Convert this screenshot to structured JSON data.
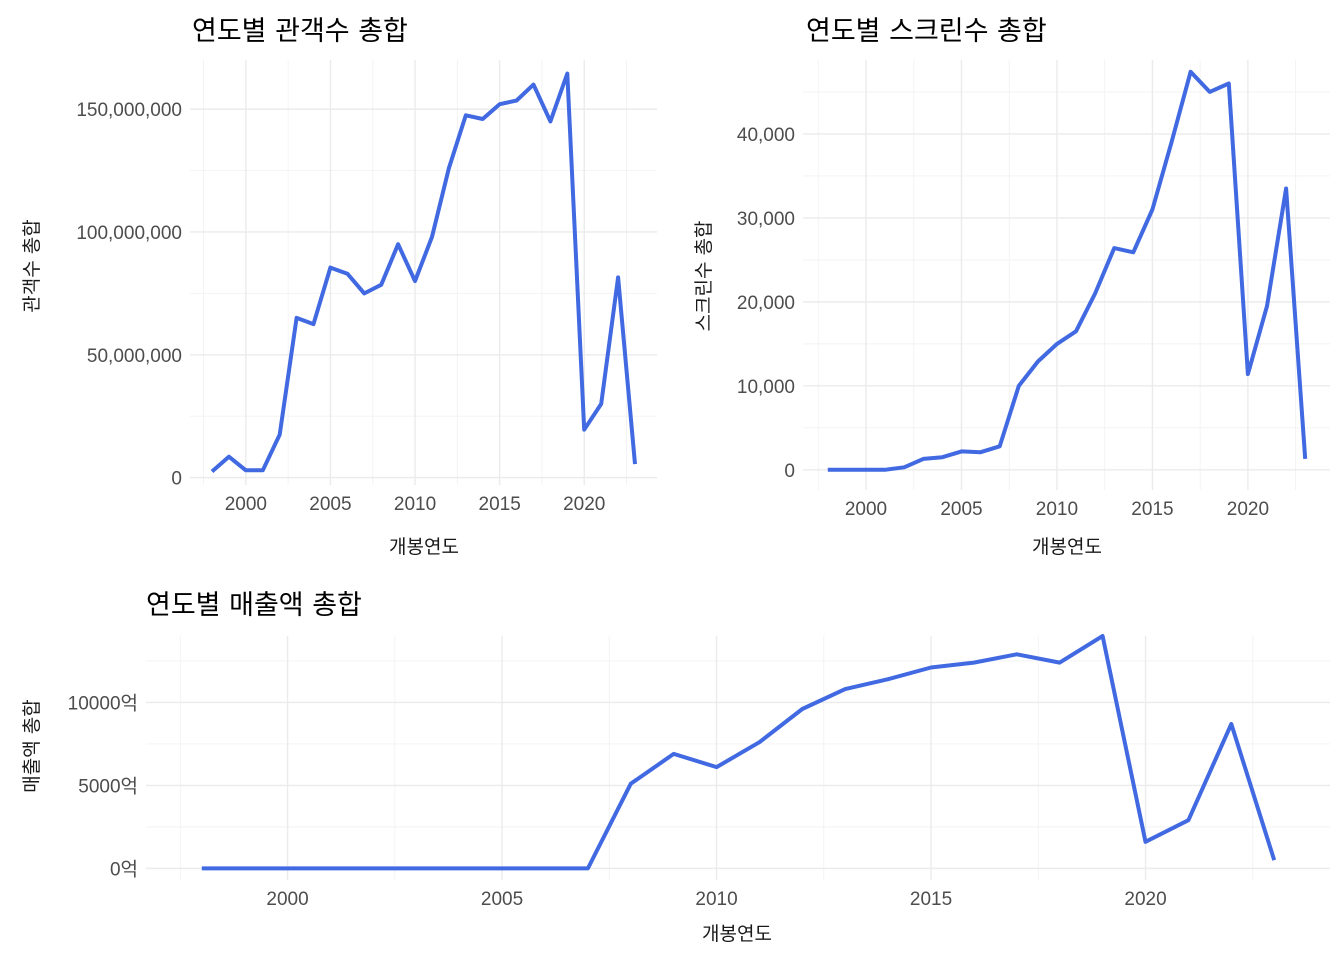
{
  "chart_data": [
    {
      "type": "line",
      "title": "연도별 관객수 총합",
      "xlabel": "개봉연도",
      "ylabel": "관객수 총합",
      "xlim": [
        1996.7,
        2024.3
      ],
      "ylim": [
        -3000000,
        170000000
      ],
      "x_ticks": [
        2000,
        2005,
        2010,
        2015,
        2020
      ],
      "x_tick_labels": [
        "2000",
        "2005",
        "2010",
        "2015",
        "2020"
      ],
      "y_ticks": [
        0,
        50000000,
        100000000,
        150000000
      ],
      "y_tick_labels": [
        "0",
        "50,000,000",
        "100,000,000",
        "150,000,000"
      ],
      "grid": true,
      "legend": "none",
      "color": "#4169e1",
      "x": [
        1998,
        1999,
        2000,
        2001,
        2002,
        2003,
        2004,
        2005,
        2006,
        2007,
        2008,
        2009,
        2010,
        2011,
        2012,
        2013,
        2014,
        2015,
        2016,
        2017,
        2018,
        2019,
        2020,
        2021,
        2022,
        2023
      ],
      "y": [
        2500000,
        8500000,
        3000000,
        3000000,
        17500000,
        65000000,
        62500000,
        85500000,
        83000000,
        75000000,
        78500000,
        95000000,
        80000000,
        98000000,
        126000000,
        147500000,
        146000000,
        152000000,
        153500000,
        160000000,
        145000000,
        164500000,
        19500000,
        30000000,
        81500000,
        5500000
      ]
    },
    {
      "type": "line",
      "title": "연도별 스크린수 총합",
      "xlabel": "개봉연도",
      "ylabel": "스크린수 총합",
      "xlim": [
        1996.7,
        2024.3
      ],
      "ylim": [
        -2400,
        48800
      ],
      "x_ticks": [
        2000,
        2005,
        2010,
        2015,
        2020
      ],
      "x_tick_labels": [
        "2000",
        "2005",
        "2010",
        "2015",
        "2020"
      ],
      "y_ticks": [
        0,
        10000,
        20000,
        30000,
        40000
      ],
      "y_tick_labels": [
        "0",
        "10,000",
        "20,000",
        "30,000",
        "40,000"
      ],
      "grid": true,
      "legend": "none",
      "color": "#4169e1",
      "x": [
        1998,
        1999,
        2000,
        2001,
        2002,
        2003,
        2004,
        2005,
        2006,
        2007,
        2008,
        2009,
        2010,
        2011,
        2012,
        2013,
        2014,
        2015,
        2016,
        2017,
        2018,
        2019,
        2020,
        2021,
        2022,
        2023
      ],
      "y": [
        0,
        0,
        0,
        0,
        300,
        1300,
        1500,
        2200,
        2100,
        2800,
        10000,
        12900,
        15000,
        16500,
        21000,
        26400,
        25900,
        31000,
        39000,
        47400,
        45000,
        46000,
        11400,
        19500,
        33500,
        1300
      ]
    },
    {
      "type": "line",
      "title": "연도별 매출액 총합",
      "xlabel": "개봉연도",
      "ylabel": "매출액 총합",
      "xlim": [
        1996.7,
        2024.3
      ],
      "ylim": [
        -700,
        14000
      ],
      "x_ticks": [
        2000,
        2005,
        2010,
        2015,
        2020
      ],
      "x_tick_labels": [
        "2000",
        "2005",
        "2010",
        "2015",
        "2020"
      ],
      "y_ticks": [
        0,
        5000,
        10000
      ],
      "y_tick_labels": [
        "0억",
        "5000억",
        "10000억"
      ],
      "grid": true,
      "legend": "none",
      "color": "#4169e1",
      "x": [
        1998,
        1999,
        2000,
        2001,
        2002,
        2003,
        2004,
        2005,
        2006,
        2007,
        2008,
        2009,
        2010,
        2011,
        2012,
        2013,
        2014,
        2015,
        2016,
        2017,
        2018,
        2019,
        2020,
        2021,
        2022,
        2023
      ],
      "y": [
        0,
        0,
        0,
        0,
        0,
        0,
        0,
        0,
        0,
        0,
        5100,
        6900,
        6100,
        7600,
        9600,
        10800,
        11400,
        12100,
        12400,
        12900,
        12400,
        14000,
        1600,
        2900,
        8700,
        500
      ]
    }
  ]
}
